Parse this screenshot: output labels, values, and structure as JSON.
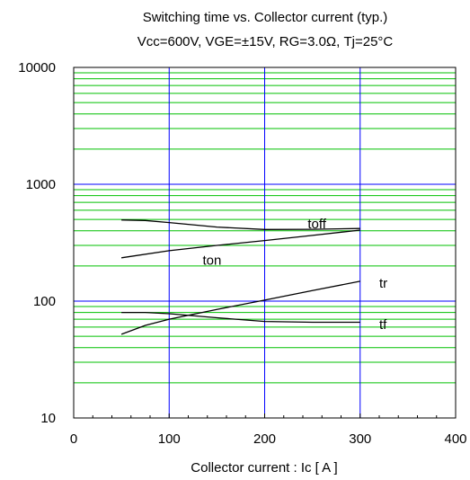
{
  "chart_data": {
    "type": "line",
    "title": "Switching time vs. Collector current (typ.)",
    "subtitle": "Vcc=600V, VGE=±15V, RG=3.0Ω, Tj=25°C",
    "xlabel": "Collector current : Ic [ A ]",
    "ylabel": "",
    "xlim": [
      0,
      400
    ],
    "ylim": [
      10,
      10000
    ],
    "yscale": "log",
    "grid": true,
    "x_ticks": [
      0,
      100,
      200,
      300,
      400
    ],
    "x_tick_labels": [
      "0",
      "100",
      "200",
      "300",
      "400"
    ],
    "y_ticks": [
      10,
      100,
      1000,
      10000
    ],
    "y_tick_labels": [
      "10",
      "100",
      "1000",
      "10000"
    ],
    "colors": {
      "major_grid": "#0000ff",
      "minor_grid": "#00c000",
      "line": "#000000",
      "frame": "#000000"
    },
    "series": [
      {
        "name": "toff",
        "x": [
          50,
          75,
          100,
          150,
          200,
          250,
          300
        ],
        "y": [
          495,
          490,
          470,
          430,
          410,
          412,
          418
        ]
      },
      {
        "name": "ton",
        "x": [
          50,
          100,
          150,
          200,
          250,
          300
        ],
        "y": [
          235,
          270,
          300,
          330,
          365,
          405
        ]
      },
      {
        "name": "tr",
        "x": [
          50,
          75,
          100,
          150,
          200,
          250,
          300
        ],
        "y": [
          52,
          62,
          70,
          85,
          102,
          123,
          148
        ]
      },
      {
        "name": "tf",
        "x": [
          50,
          75,
          100,
          150,
          200,
          250,
          300
        ],
        "y": [
          80,
          80,
          78,
          72,
          67,
          66,
          66
        ]
      }
    ]
  }
}
